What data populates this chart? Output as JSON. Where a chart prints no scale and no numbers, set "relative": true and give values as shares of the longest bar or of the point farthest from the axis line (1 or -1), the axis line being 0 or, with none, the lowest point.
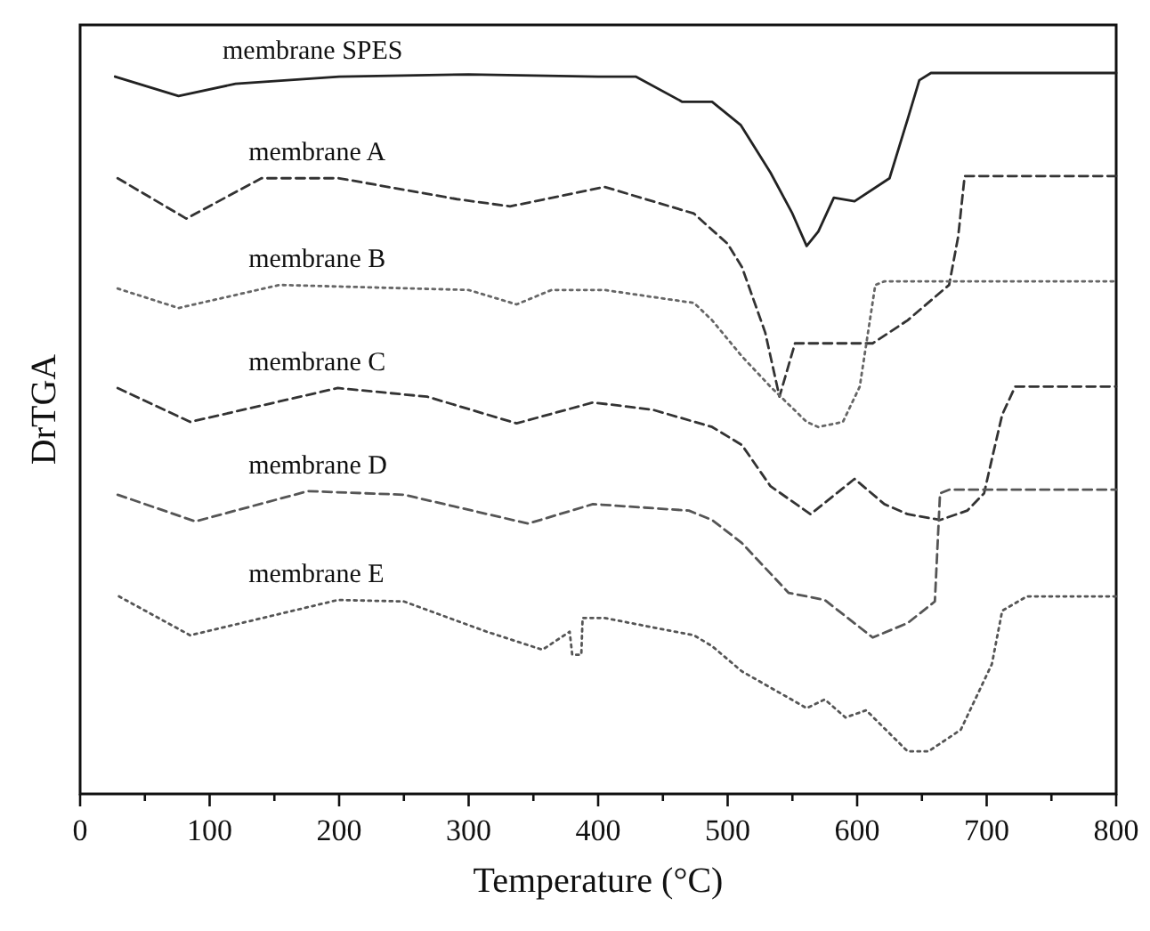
{
  "chart_data": {
    "type": "line",
    "relative": true,
    "xlabel": "Temperature (°C)",
    "ylabel": "DrTGA",
    "xlim": [
      0,
      800
    ],
    "xticks": [
      0,
      {
        "value": 50,
        "label": null
      },
      100,
      {
        "value": 150,
        "label": null
      },
      200,
      {
        "value": 250,
        "label": null
      },
      300,
      {
        "value": 350,
        "label": null
      },
      400,
      {
        "value": 450,
        "label": null
      },
      500,
      {
        "value": 550,
        "label": null
      },
      600,
      {
        "value": 650,
        "label": null
      },
      700,
      {
        "value": 750,
        "label": null
      },
      800
    ],
    "grid": false,
    "marker": "none",
    "series": [
      {
        "name": "membrane SPES",
        "color": "#222222",
        "line_style": "solid",
        "x": [
          27,
          76,
          120,
          200,
          300,
          400,
          429,
          465,
          488,
          510,
          533,
          550,
          561,
          570,
          582,
          598,
          625,
          639,
          648,
          657,
          800
        ],
        "values": [
          0.995,
          0.968,
          0.985,
          0.995,
          0.998,
          0.995,
          0.995,
          0.96,
          0.96,
          0.928,
          0.862,
          0.805,
          0.76,
          0.78,
          0.827,
          0.822,
          0.854,
          0.936,
          0.99,
          1.0,
          1.0
        ]
      },
      {
        "name": "membrane A",
        "color": "#333333",
        "line_style": "dashed",
        "x": [
          29,
          82,
          140,
          200,
          291,
          332,
          405,
          474,
          500,
          511,
          529,
          540,
          552,
          557,
          612,
          639,
          671,
          678,
          683,
          800
        ],
        "values": [
          0.854,
          0.798,
          0.854,
          0.854,
          0.825,
          0.815,
          0.842,
          0.805,
          0.763,
          0.731,
          0.64,
          0.551,
          0.625,
          0.625,
          0.625,
          0.657,
          0.706,
          0.773,
          0.857,
          0.857
        ]
      },
      {
        "name": "membrane B",
        "color": "#666666",
        "line_style": "dotted",
        "x": [
          29,
          76,
          154,
          300,
          337,
          364,
          405,
          474,
          488,
          511,
          533,
          561,
          570,
          589,
          602,
          614,
          621,
          800
        ],
        "values": [
          0.701,
          0.674,
          0.706,
          0.699,
          0.679,
          0.699,
          0.699,
          0.681,
          0.657,
          0.607,
          0.565,
          0.516,
          0.509,
          0.516,
          0.565,
          0.706,
          0.711,
          0.711
        ]
      },
      {
        "name": "membrane C",
        "color": "#333333",
        "line_style": "dashed",
        "x": [
          29,
          85,
          199,
          268,
          337,
          396,
          442,
          488,
          511,
          533,
          564,
          598,
          621,
          639,
          664,
          685,
          698,
          705,
          712,
          722,
          800
        ],
        "values": [
          0.563,
          0.516,
          0.563,
          0.551,
          0.514,
          0.543,
          0.533,
          0.509,
          0.484,
          0.427,
          0.388,
          0.437,
          0.402,
          0.388,
          0.38,
          0.393,
          0.417,
          0.472,
          0.526,
          0.565,
          0.565
        ]
      },
      {
        "name": "membrane D",
        "color": "#555555",
        "line_style": "dashed",
        "x": [
          29,
          89,
          176,
          250,
          346,
          396,
          470,
          488,
          511,
          547,
          575,
          612,
          639,
          660,
          664,
          671,
          800
        ],
        "values": [
          0.415,
          0.378,
          0.42,
          0.415,
          0.375,
          0.402,
          0.393,
          0.38,
          0.348,
          0.279,
          0.269,
          0.217,
          0.237,
          0.267,
          0.417,
          0.422,
          0.422
        ]
      },
      {
        "name": "membrane E",
        "color": "#555555",
        "line_style": "dotted",
        "x": [
          30,
          85,
          199,
          250,
          314,
          357,
          378,
          380,
          387,
          388,
          405,
          474,
          488,
          511,
          561,
          575,
          591,
          607,
          639,
          655,
          680,
          704,
          712,
          731,
          800
        ],
        "values": [
          0.274,
          0.22,
          0.269,
          0.267,
          0.225,
          0.2,
          0.225,
          0.193,
          0.193,
          0.244,
          0.244,
          0.22,
          0.205,
          0.17,
          0.119,
          0.131,
          0.106,
          0.116,
          0.059,
          0.059,
          0.089,
          0.18,
          0.254,
          0.274,
          0.274
        ]
      }
    ]
  }
}
